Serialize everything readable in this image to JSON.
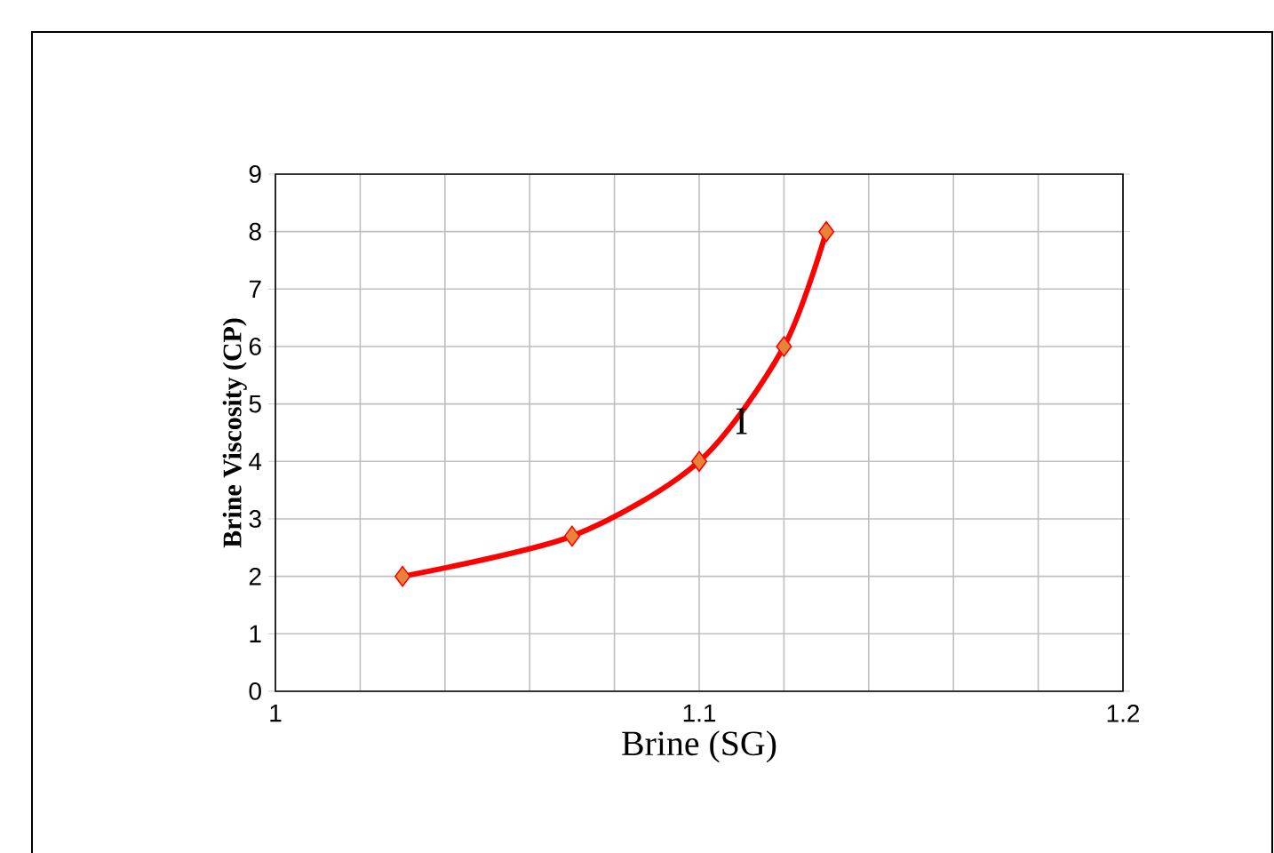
{
  "chart_data": {
    "type": "line",
    "xlabel": "Brine (SG)",
    "ylabel": "Brine Viscosity (CP)",
    "x": [
      1.03,
      1.07,
      1.1,
      1.12,
      1.13
    ],
    "series": [
      {
        "color": "#ff0000",
        "colors": [
          "#e8833a",
          "#e8833a",
          "#e8833a",
          "#e8833a",
          "#e8833a"
        ],
        "values": [
          2,
          2.7,
          4,
          6,
          8
        ]
      }
    ],
    "xlim": [
      1,
      1.2
    ],
    "xticks": [
      1,
      {
        "value": 1.02,
        "label": null
      },
      {
        "value": 1.04,
        "label": null
      },
      {
        "value": 1.06,
        "label": null
      },
      {
        "value": 1.08,
        "label": null
      },
      1.1,
      {
        "value": 1.12,
        "label": null
      },
      {
        "value": 1.14,
        "label": null
      },
      {
        "value": 1.16,
        "label": null
      },
      {
        "value": 1.18,
        "label": null
      },
      1.2
    ],
    "ylim": [
      0,
      9
    ],
    "yticks": [
      0,
      1,
      2,
      3,
      4,
      5,
      6,
      7,
      8,
      9
    ],
    "grid": true,
    "marker": "diamond",
    "line_style": "solid",
    "annotations": [
      {
        "text": "I",
        "x": 1.11,
        "y": 4.7
      }
    ]
  }
}
